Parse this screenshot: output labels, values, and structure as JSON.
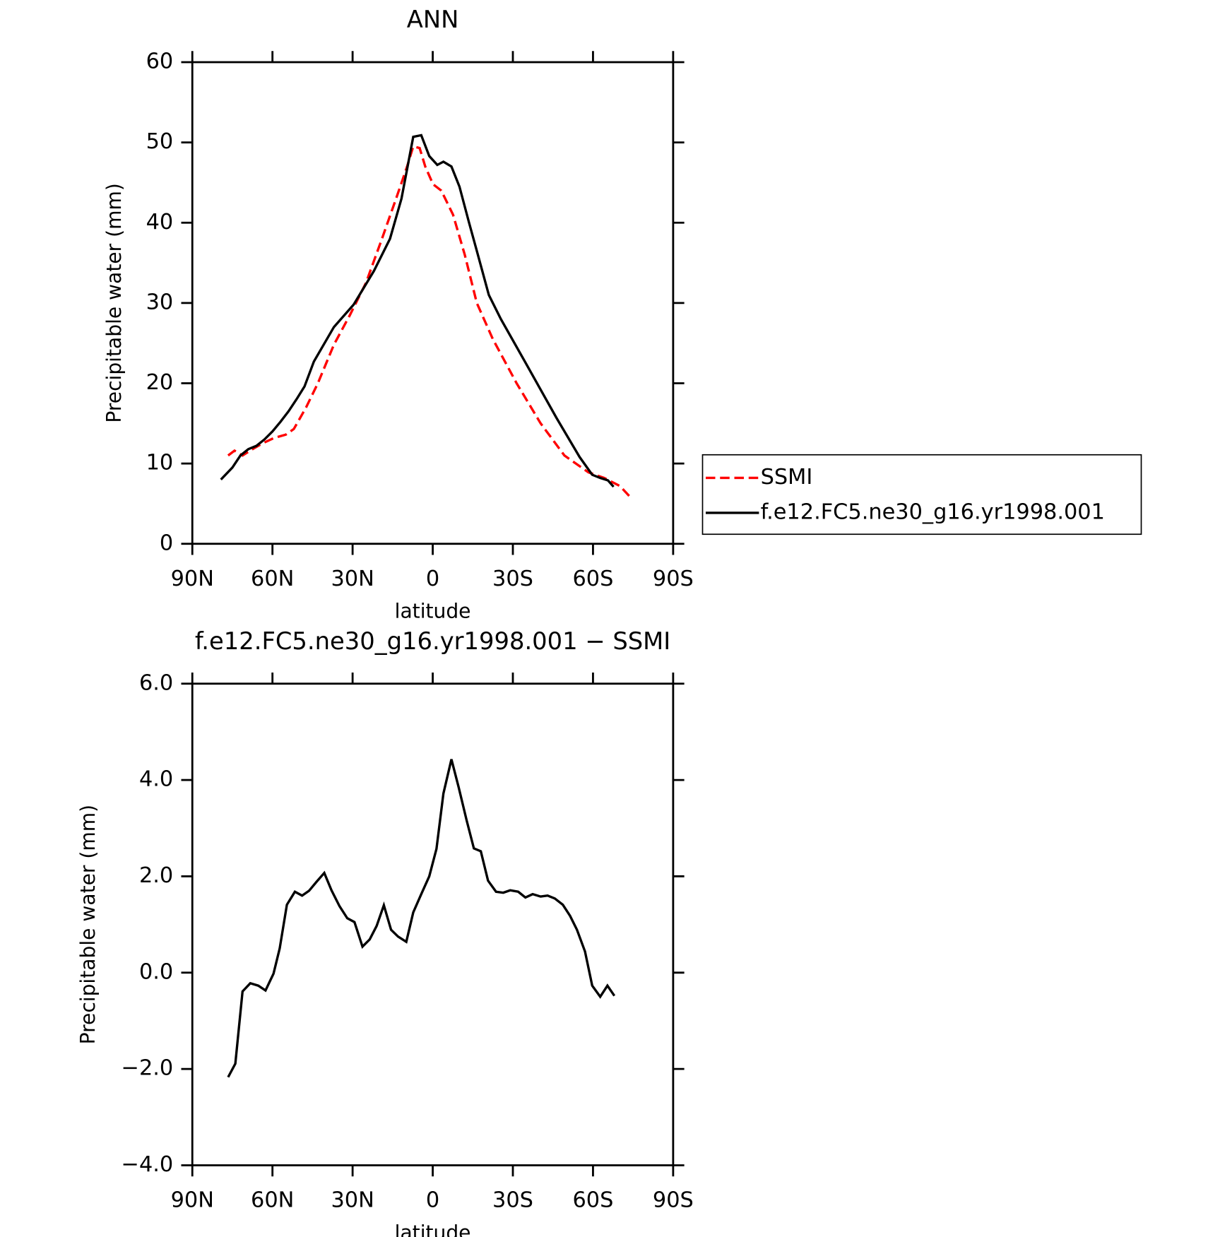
{
  "chart_data": [
    {
      "type": "line",
      "title": "ANN",
      "xlabel": "latitude",
      "ylabel": "Precipitable water (mm)",
      "xlim": [
        90,
        -90
      ],
      "xticks": [
        {
          "value": 90,
          "label": "90N"
        },
        {
          "value": 60,
          "label": "60N"
        },
        {
          "value": 30,
          "label": "30N"
        },
        0,
        {
          "value": -30,
          "label": "30S"
        },
        {
          "value": -60,
          "label": "60S"
        },
        {
          "value": -90,
          "label": "90S"
        }
      ],
      "ylim": [
        0,
        60
      ],
      "yticks": [
        0,
        10,
        20,
        30,
        40,
        50,
        60
      ],
      "legend": "right",
      "series": [
        {
          "name": "SSMI",
          "color": "#ff0000",
          "line_style": "dashed",
          "x": [
            76.6,
            74.2,
            71.2,
            67.4,
            63.8,
            59.3,
            55,
            52,
            47.4,
            43,
            37,
            31,
            25,
            19,
            13.2,
            9.6,
            7.3,
            4.9,
            2.8,
            -0.1,
            -3.2,
            -7.6,
            -12,
            -16.5,
            -22.5,
            -31.4,
            -40.4,
            -49.3,
            -58.3,
            -64.2,
            -70.1,
            -73.7
          ],
          "values": [
            11,
            11.6,
            11,
            11.8,
            12.5,
            13.2,
            13.6,
            14.3,
            17,
            20,
            24.8,
            28.5,
            32.5,
            38,
            43.5,
            47,
            49.5,
            49.3,
            47,
            44.8,
            44,
            41,
            36,
            30,
            25.5,
            20,
            15,
            11,
            8.9,
            8.2,
            7.2,
            5.9
          ]
        },
        {
          "name": "f.e12.FC5.ne30_g16.yr1998.001",
          "color": "#000000",
          "line_style": "solid",
          "x": [
            79.3,
            75,
            72,
            69,
            66,
            63,
            60,
            57,
            54,
            51,
            48,
            44.5,
            37,
            29.6,
            22,
            16,
            11.7,
            7.3,
            4.3,
            1.3,
            -1.7,
            -4,
            -7,
            -10,
            -13.6,
            -16.5,
            -21,
            -25.5,
            -34.5,
            -46.3,
            -55,
            -59.7,
            -62.7,
            -65.6,
            -67.7
          ],
          "values": [
            8,
            9.5,
            11,
            11.8,
            12.2,
            13,
            14,
            15.2,
            16.5,
            18,
            19.6,
            22.7,
            27,
            29.8,
            34,
            38,
            43,
            50.7,
            50.9,
            48.3,
            47.2,
            47.6,
            47,
            44.5,
            40,
            36.5,
            31,
            28,
            22.7,
            15.7,
            10.8,
            8.6,
            8.2,
            7.9,
            7.1
          ]
        }
      ]
    },
    {
      "type": "line",
      "title": "f.e12.FC5.ne30_g16.yr1998.001 − SSMI",
      "xlabel": "latitude",
      "ylabel": "Precipitable water (mm)",
      "xlim": [
        90,
        -90
      ],
      "xticks": [
        {
          "value": 90,
          "label": "90N"
        },
        {
          "value": 60,
          "label": "60N"
        },
        {
          "value": 30,
          "label": "30N"
        },
        0,
        {
          "value": -30,
          "label": "30S"
        },
        {
          "value": -60,
          "label": "60S"
        },
        {
          "value": -90,
          "label": "90S"
        }
      ],
      "ylim": [
        -4,
        6
      ],
      "yticks": [
        {
          "value": -4,
          "label": "−4.0"
        },
        {
          "value": -2,
          "label": "−2.0"
        },
        {
          "value": 0,
          "label": "0.0"
        },
        {
          "value": 2,
          "label": "2.0"
        },
        {
          "value": 4,
          "label": "4.0"
        },
        {
          "value": 6,
          "label": "6.0"
        }
      ],
      "series": [
        {
          "color": "#000000",
          "line_style": "solid",
          "x": [
            76.6,
            73.9,
            71.2,
            68.3,
            65.3,
            62.6,
            59.6,
            57.3,
            54.6,
            51.6,
            48.9,
            46.3,
            43.6,
            40.6,
            37.9,
            34.9,
            32,
            29.3,
            26.3,
            23.6,
            21,
            18.3,
            15.6,
            13,
            9.9,
            7.3,
            4.3,
            1.3,
            -1.4,
            -4,
            -7,
            -9.7,
            -12.7,
            -15.4,
            -18,
            -20.7,
            -23.7,
            -26.4,
            -29,
            -32,
            -34.7,
            -37.4,
            -40.4,
            -43,
            -45.7,
            -48.7,
            -51.4,
            -54,
            -57,
            -59.7,
            -62.7,
            -65.4,
            -68
          ],
          "values": [
            -2.17,
            -1.89,
            -0.39,
            -0.22,
            -0.27,
            -0.37,
            -0.02,
            0.5,
            1.41,
            1.68,
            1.6,
            1.7,
            1.88,
            2.07,
            1.71,
            1.38,
            1.13,
            1.05,
            0.54,
            0.69,
            0.97,
            1.4,
            0.89,
            0.75,
            0.64,
            1.25,
            1.63,
            2.0,
            2.57,
            3.72,
            4.43,
            3.85,
            3.16,
            2.58,
            2.52,
            1.91,
            1.68,
            1.66,
            1.71,
            1.68,
            1.56,
            1.63,
            1.58,
            1.6,
            1.54,
            1.41,
            1.18,
            0.89,
            0.44,
            -0.27,
            -0.5,
            -0.27,
            -0.48
          ]
        }
      ]
    }
  ]
}
